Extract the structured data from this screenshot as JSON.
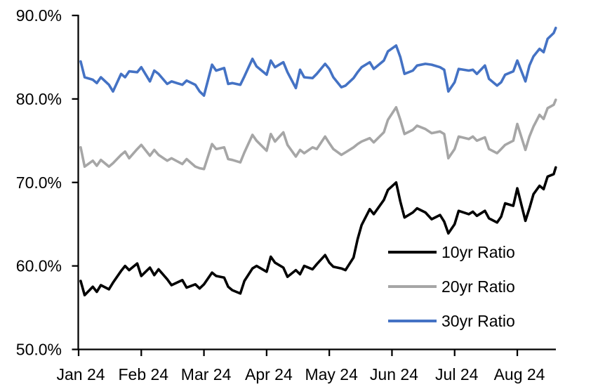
{
  "chart_data": {
    "type": "line",
    "x": [
      "Jan 2",
      "Jan 4",
      "Jan 8",
      "Jan 10",
      "Jan 12",
      "Jan 16",
      "Jan 18",
      "Jan 22",
      "Jan 24",
      "Jan 26",
      "Jan 30",
      "Feb 1",
      "Feb 5",
      "Feb 7",
      "Feb 9",
      "Feb 13",
      "Feb 15",
      "Feb 20",
      "Feb 22",
      "Feb 26",
      "Feb 28",
      "Mar 1",
      "Mar 5",
      "Mar 7",
      "Mar 11",
      "Mar 13",
      "Mar 15",
      "Mar 19",
      "Mar 21",
      "Mar 25",
      "Mar 27",
      "Apr 1",
      "Apr 3",
      "Apr 5",
      "Apr 9",
      "Apr 11",
      "Apr 15",
      "Apr 17",
      "Apr 19",
      "Apr 23",
      "Apr 25",
      "Apr 29",
      "May 1",
      "May 3",
      "May 7",
      "May 9",
      "May 13",
      "May 15",
      "May 17",
      "May 21",
      "May 23",
      "May 28",
      "May 30",
      "Jun 3",
      "Jun 5",
      "Jun 7",
      "Jun 11",
      "Jun 13",
      "Jun 17",
      "Jun 20",
      "Jun 24",
      "Jun 26",
      "Jun 28",
      "Jul 1",
      "Jul 3",
      "Jul 8",
      "Jul 10",
      "Jul 12",
      "Jul 16",
      "Jul 18",
      "Jul 22",
      "Jul 24",
      "Jul 26",
      "Jul 30",
      "Aug 1",
      "Aug 5",
      "Aug 7",
      "Aug 9",
      "Aug 12",
      "Aug 14",
      "Aug 16",
      "Aug 19",
      "Aug 20"
    ],
    "series": [
      {
        "name": "10yr Ratio",
        "color": "#000000",
        "values": [
          58.2,
          56.5,
          57.5,
          56.9,
          57.7,
          57.2,
          58.0,
          59.4,
          60.0,
          59.5,
          60.3,
          58.8,
          59.8,
          58.9,
          59.6,
          58.4,
          57.7,
          58.3,
          57.4,
          57.8,
          57.3,
          57.8,
          59.2,
          58.8,
          58.6,
          57.5,
          57.1,
          56.7,
          58.2,
          59.7,
          60.0,
          59.3,
          61.1,
          60.4,
          59.8,
          58.7,
          59.5,
          59.0,
          60.0,
          59.6,
          60.2,
          61.3,
          60.4,
          59.9,
          59.7,
          59.5,
          61.0,
          63.2,
          64.9,
          66.8,
          66.2,
          67.9,
          69.1,
          70.0,
          67.7,
          65.8,
          66.4,
          66.9,
          66.4,
          65.6,
          66.1,
          65.3,
          63.9,
          65.0,
          66.6,
          66.2,
          66.5,
          66.0,
          66.6,
          65.7,
          65.2,
          65.9,
          67.5,
          67.2,
          69.3,
          65.4,
          66.9,
          68.6,
          69.6,
          69.2,
          70.7,
          71.0,
          71.8
        ]
      },
      {
        "name": "20yr Ratio",
        "color": "#A6A6A6",
        "values": [
          74.2,
          71.9,
          72.6,
          72.0,
          72.7,
          71.9,
          72.3,
          73.3,
          73.7,
          72.9,
          74.0,
          74.5,
          73.2,
          73.9,
          73.3,
          72.6,
          72.9,
          72.2,
          72.8,
          71.9,
          71.7,
          71.6,
          74.6,
          74.0,
          74.2,
          72.8,
          72.7,
          72.4,
          73.6,
          75.7,
          75.0,
          73.8,
          75.8,
          74.9,
          76.0,
          74.5,
          73.1,
          73.9,
          73.5,
          74.2,
          74.0,
          75.5,
          74.7,
          74.0,
          73.3,
          73.6,
          74.2,
          74.6,
          74.9,
          75.3,
          74.8,
          76.0,
          77.5,
          79.0,
          77.5,
          75.8,
          76.3,
          76.8,
          76.4,
          75.9,
          76.1,
          75.8,
          72.9,
          74.0,
          75.5,
          75.2,
          75.5,
          75.0,
          75.4,
          74.0,
          73.5,
          74.0,
          74.5,
          75.0,
          77.0,
          73.9,
          75.5,
          76.7,
          78.1,
          77.6,
          78.9,
          79.3,
          79.9
        ]
      },
      {
        "name": "30yr Ratio",
        "color": "#4472C4",
        "values": [
          84.5,
          82.6,
          82.3,
          81.9,
          82.6,
          81.7,
          80.9,
          83.0,
          82.6,
          83.3,
          83.2,
          83.8,
          82.1,
          83.4,
          83.0,
          81.8,
          82.1,
          81.7,
          82.2,
          81.7,
          80.9,
          80.4,
          84.1,
          83.4,
          83.7,
          81.8,
          81.9,
          81.7,
          82.7,
          84.8,
          83.9,
          82.9,
          84.6,
          83.8,
          84.4,
          83.2,
          81.3,
          83.5,
          82.6,
          82.5,
          83.0,
          84.2,
          83.6,
          82.6,
          81.4,
          81.6,
          82.5,
          83.2,
          83.8,
          84.4,
          83.6,
          84.6,
          85.7,
          86.4,
          85.0,
          83.0,
          83.4,
          84.0,
          84.2,
          84.1,
          83.8,
          83.5,
          80.9,
          82.0,
          83.6,
          83.4,
          83.5,
          83.0,
          84.0,
          82.4,
          81.6,
          82.0,
          82.9,
          83.3,
          84.6,
          82.1,
          84.0,
          85.1,
          86.0,
          85.6,
          87.2,
          87.9,
          88.5
        ]
      }
    ],
    "x_tick_labels": [
      "Jan 24",
      "Feb 24",
      "Mar 24",
      "Apr 24",
      "May 24",
      "Jun 24",
      "Jul 24",
      "Aug 24"
    ],
    "y_tick_labels": [
      "50.0%",
      "60.0%",
      "70.0%",
      "80.0%",
      "90.0%"
    ],
    "ylim": [
      50,
      90
    ],
    "y_tick_step": 10,
    "grid": false,
    "legend_position": "inside-right",
    "legend_labels": [
      "10yr Ratio",
      "20yr Ratio",
      "30yr Ratio"
    ]
  }
}
